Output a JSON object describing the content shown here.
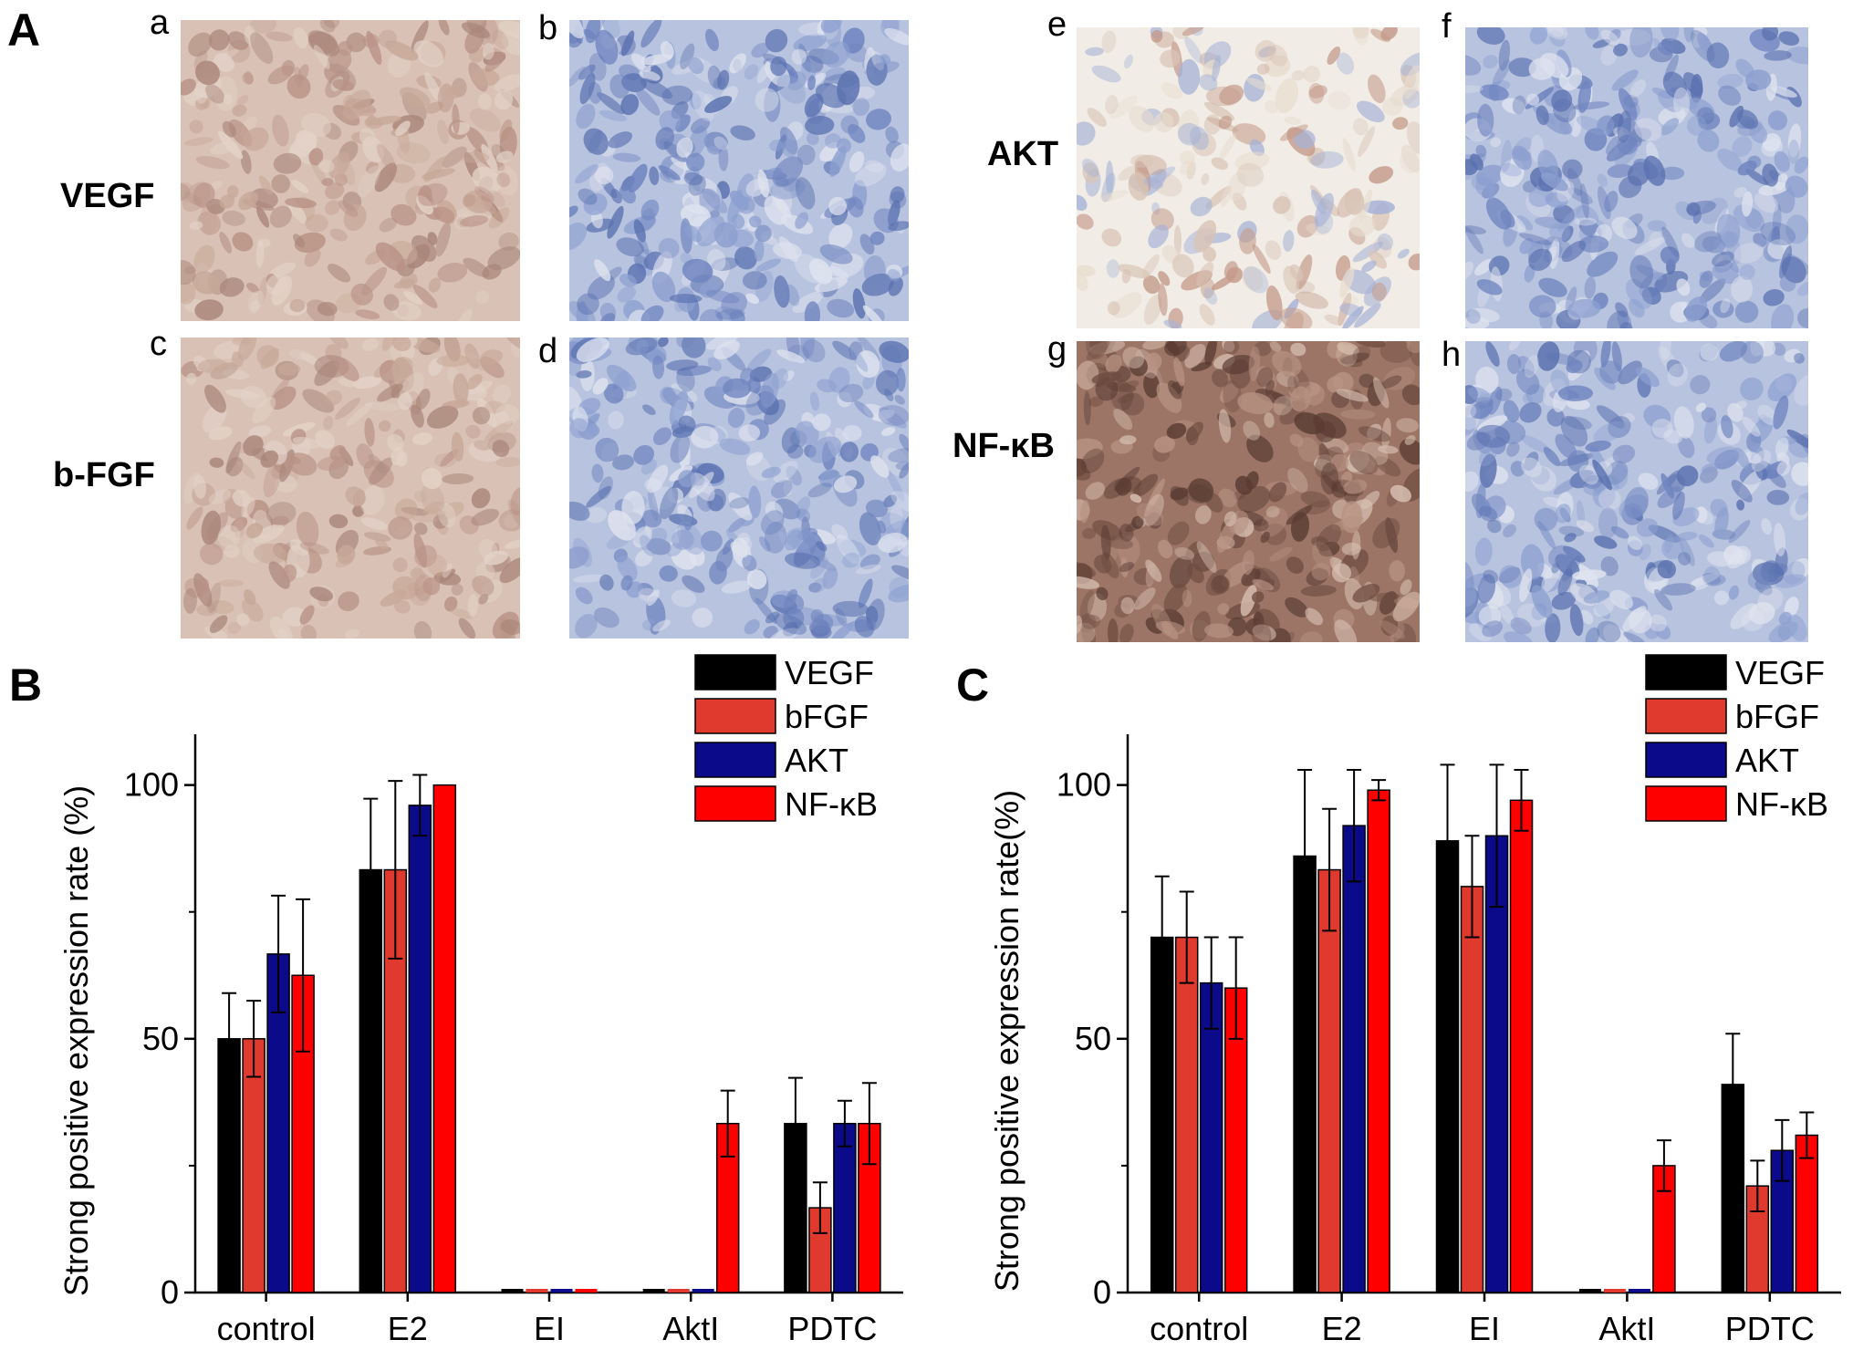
{
  "panel_a": {
    "label": "A",
    "rows": [
      {
        "label": "VEGF"
      },
      {
        "label": "b-FGF"
      },
      {
        "label": "AKT"
      },
      {
        "label": "NF-κB"
      }
    ],
    "images": [
      {
        "letter": "a",
        "stain": "brown"
      },
      {
        "letter": "b",
        "stain": "blue"
      },
      {
        "letter": "c",
        "stain": "brown"
      },
      {
        "letter": "d",
        "stain": "blue"
      },
      {
        "letter": "e",
        "stain": "light"
      },
      {
        "letter": "f",
        "stain": "blue"
      },
      {
        "letter": "g",
        "stain": "darkbrown"
      },
      {
        "letter": "h",
        "stain": "blue"
      }
    ],
    "colors": {
      "brown": "#c9a89a",
      "blue": "#8b9fcc",
      "light": "#e9e3db",
      "darkbrown": "#8a6152"
    }
  },
  "chart_data": [
    {
      "panel_label": "B",
      "type": "bar",
      "ylabel": "Strong positive expression rate (%)",
      "ylim": [
        0,
        110
      ],
      "yticks": [
        0,
        50,
        100
      ],
      "categories": [
        "control",
        "E2",
        "EI",
        "AktI",
        "PDTC"
      ],
      "series": [
        {
          "name": "VEGF",
          "color": "#000000",
          "values": [
            50,
            83.3,
            0,
            0,
            33.3
          ],
          "errors": [
            9,
            14,
            0,
            0,
            9
          ]
        },
        {
          "name": "bFGF",
          "color": "#e03a2e",
          "values": [
            50,
            83.3,
            0,
            0,
            16.7
          ],
          "errors": [
            7.5,
            17.5,
            0,
            0,
            5
          ]
        },
        {
          "name": "AKT",
          "color": "#0a0a8a",
          "values": [
            66.7,
            96,
            0,
            0,
            33.3
          ],
          "errors": [
            11.5,
            6,
            0,
            0,
            4.5
          ]
        },
        {
          "name": "NF-κB",
          "color": "#ff0000",
          "values": [
            62.5,
            100,
            0,
            33.3,
            33.3
          ],
          "errors": [
            15,
            0,
            0,
            6.5,
            8
          ]
        }
      ],
      "legend_position": "top-right",
      "grid": false
    },
    {
      "panel_label": "C",
      "type": "bar",
      "ylabel": "Strong positive expression rate(%)",
      "ylim": [
        0,
        110
      ],
      "yticks": [
        0,
        50,
        100
      ],
      "categories": [
        "control",
        "E2",
        "EI",
        "AktI",
        "PDTC"
      ],
      "series": [
        {
          "name": "VEGF",
          "color": "#000000",
          "values": [
            70,
            86,
            89,
            0,
            41
          ],
          "errors": [
            12,
            17,
            15,
            0,
            10
          ]
        },
        {
          "name": "bFGF",
          "color": "#e03a2e",
          "values": [
            70,
            83.3,
            80,
            0,
            21
          ],
          "errors": [
            9,
            12,
            10,
            0,
            5
          ]
        },
        {
          "name": "AKT",
          "color": "#0a0a8a",
          "values": [
            61,
            92,
            90,
            0,
            28
          ],
          "errors": [
            9,
            11,
            14,
            0,
            6
          ]
        },
        {
          "name": "NF-κB",
          "color": "#ff0000",
          "values": [
            60,
            99,
            97,
            25,
            31
          ],
          "errors": [
            10,
            2,
            6,
            5,
            4.5
          ]
        }
      ],
      "legend_position": "top-right",
      "grid": false
    }
  ]
}
